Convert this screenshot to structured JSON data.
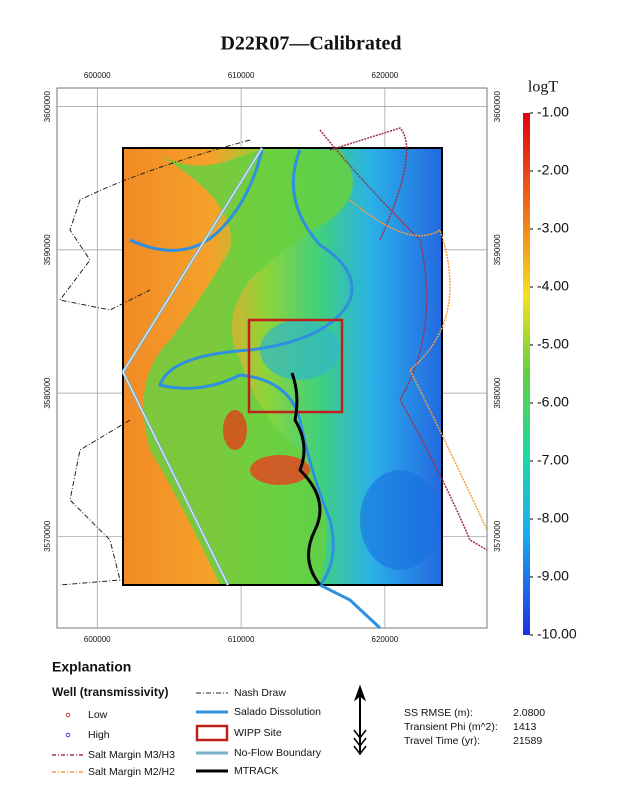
{
  "title": "D22R07—Calibrated",
  "map": {
    "xlim": [
      597200,
      627100
    ],
    "ylim": [
      3563600,
      3601300
    ],
    "xticks": [
      600000,
      610000,
      620000
    ],
    "yticks": [
      3570000,
      3580000,
      3590000,
      3600000
    ]
  },
  "colorbar": {
    "title": "logT",
    "lim": [
      -10,
      -1
    ],
    "ticks": [
      {
        "value": -1,
        "label": "-1.00"
      },
      {
        "value": -2,
        "label": "-2.00"
      },
      {
        "value": -3,
        "label": "-3.00"
      },
      {
        "value": -4,
        "label": "-4.00"
      },
      {
        "value": -5,
        "label": "-5.00"
      },
      {
        "value": -6,
        "label": "-6.00"
      },
      {
        "value": -7,
        "label": "-7.00"
      },
      {
        "value": -8,
        "label": "-8.00"
      },
      {
        "value": -9,
        "label": "-9.00"
      },
      {
        "value": -10,
        "label": "-10.00"
      }
    ]
  },
  "explanation": {
    "title": "Explanation",
    "well_heading": "Well (transmissivity)",
    "items": [
      "Low",
      "High",
      "Salt Margin M3/H3",
      "Salt Margin M2/H2",
      "Nash Draw",
      "Salado Dissolution",
      "WIPP Site",
      "No-Flow Boundary",
      "MTRACK"
    ]
  },
  "stats": [
    {
      "label": "SS RMSE (m):",
      "value": "2.0800"
    },
    {
      "label": "Transient Phi (m^2):",
      "value": "1413"
    },
    {
      "label": "Travel Time (yr):",
      "value": "21589"
    }
  ]
}
